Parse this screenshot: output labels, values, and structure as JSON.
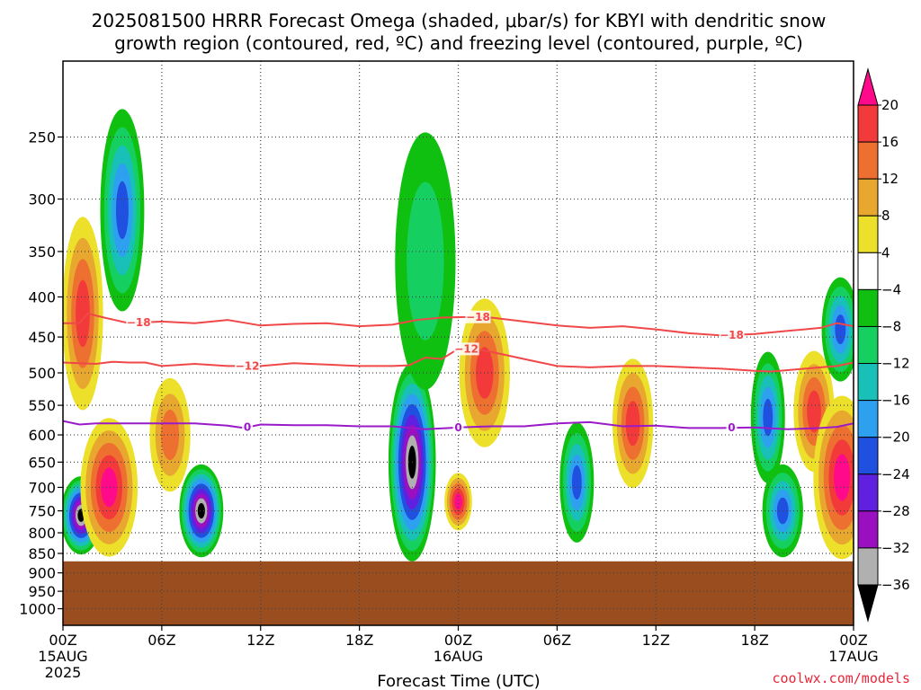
{
  "title": {
    "line1": "2025081500 HRRR Forecast Omega (shaded, μbar/s) for KBYI with dendritic snow",
    "line2": "growth region (contoured, red, ºC) and freezing level (contoured, purple, ºC)"
  },
  "credit": "coolwx.com/models",
  "colors": {
    "ground": "#9a4e1f",
    "dgz_contour": "#f04848",
    "freezing_contour": "#9a1ac8",
    "grid": "#444444"
  },
  "chart_data": {
    "type": "heatmap",
    "xlabel": "Forecast Time (UTC)",
    "ylabel": "",
    "x_ticks": [
      {
        "h": 0,
        "label": "00Z",
        "sub": "15AUG",
        "sub2": "2025"
      },
      {
        "h": 6,
        "label": "06Z"
      },
      {
        "h": 12,
        "label": "12Z"
      },
      {
        "h": 18,
        "label": "18Z"
      },
      {
        "h": 24,
        "label": "00Z",
        "sub": "16AUG"
      },
      {
        "h": 30,
        "label": "06Z"
      },
      {
        "h": 36,
        "label": "12Z"
      },
      {
        "h": 42,
        "label": "18Z"
      },
      {
        "h": 48,
        "label": "00Z",
        "sub": "17AUG"
      }
    ],
    "xlim": [
      0,
      48
    ],
    "y_axis": "pressure (hPa), log scale, reversed",
    "ylim": [
      1050,
      200
    ],
    "y_ticks": [
      250,
      300,
      350,
      400,
      450,
      500,
      550,
      600,
      650,
      700,
      750,
      800,
      850,
      900,
      950,
      1000
    ],
    "colorbar": {
      "units": "μbar/s",
      "levels": [
        20,
        16,
        12,
        8,
        4,
        -4,
        -8,
        -12,
        -16,
        -20,
        -24,
        -28,
        -32,
        -36
      ],
      "tick_labels": [
        "20",
        "16",
        "12",
        "8",
        "4",
        "−4",
        "−8",
        "−12",
        "−16",
        "−20",
        "−24",
        "−28",
        "−32",
        "−36"
      ],
      "colors": [
        "#ff0a8a",
        "#f23a3a",
        "#ee7030",
        "#e8a830",
        "#ece02a",
        "#ffffff",
        "#10c010",
        "#15d060",
        "#18c0b8",
        "#2ea0f0",
        "#2050e0",
        "#6020e0",
        "#9a10c0",
        "#b0b0b0",
        "#000000"
      ]
    },
    "ground_top_hpa": 870,
    "contours": [
      {
        "name": "-18",
        "color": "#f04848",
        "x": [
          0,
          1,
          1.5,
          2.5,
          4,
          6,
          8,
          10,
          12,
          14,
          16,
          18,
          20,
          21.5,
          23,
          25,
          26,
          28,
          30,
          32,
          34,
          36,
          38,
          40,
          42,
          44,
          46,
          47,
          48
        ],
        "y": [
          432,
          432,
          420,
          425,
          432,
          430,
          432,
          428,
          435,
          433,
          432,
          436,
          434,
          428,
          425,
          424,
          425,
          430,
          435,
          438,
          436,
          440,
          445,
          448,
          446,
          442,
          438,
          432,
          436
        ],
        "labels": [
          {
            "x": 4.6,
            "text": "−18"
          },
          {
            "x": 25.2,
            "text": "−18"
          },
          {
            "x": 40.6,
            "text": "−18"
          }
        ]
      },
      {
        "name": "-12",
        "color": "#f04848",
        "x": [
          0,
          1,
          2,
          3,
          4,
          5,
          6,
          8,
          10,
          12,
          14,
          16,
          18,
          20,
          21,
          22,
          23,
          24,
          25,
          26,
          28,
          30,
          32,
          34,
          36,
          38,
          40,
          42,
          43,
          44,
          46,
          47,
          48
        ],
        "y": [
          485,
          486,
          487,
          484,
          485,
          485,
          490,
          487,
          490,
          490,
          486,
          488,
          490,
          490,
          489,
          478,
          480,
          466,
          466,
          470,
          480,
          490,
          492,
          490,
          490,
          492,
          494,
          497,
          498,
          496,
          492,
          490,
          485
        ],
        "labels": [
          {
            "x": 11.2,
            "text": "−12"
          },
          {
            "x": 24.5,
            "text": "−12"
          }
        ]
      },
      {
        "name": "0",
        "color": "#9a1ac8",
        "x": [
          0,
          1,
          2,
          4,
          6,
          8,
          10,
          11,
          12,
          14,
          16,
          18,
          20,
          22,
          24,
          26,
          28,
          30,
          32,
          34,
          36,
          38,
          40,
          42,
          44,
          46,
          47,
          48
        ],
        "y": [
          576,
          582,
          580,
          580,
          580,
          580,
          584,
          588,
          582,
          583,
          583,
          585,
          585,
          590,
          587,
          585,
          585,
          580,
          578,
          585,
          584,
          588,
          588,
          587,
          590,
          588,
          586,
          580
        ],
        "labels": [
          {
            "x": 11.2,
            "text": "0"
          },
          {
            "x": 24.0,
            "text": "0"
          },
          {
            "x": 40.6,
            "text": "0"
          }
        ]
      }
    ],
    "omega_features": [
      {
        "h": 1.1,
        "p": 760,
        "dh": 0.8,
        "dp": 150,
        "value": -36
      },
      {
        "h": 2.8,
        "p": 700,
        "dh": 1.3,
        "dp": 260,
        "value": 20
      },
      {
        "h": 3.6,
        "p": 310,
        "dh": 0.9,
        "dp": 170,
        "value": -22
      },
      {
        "h": 1.2,
        "p": 420,
        "dh": 0.8,
        "dp": 220,
        "value": 16
      },
      {
        "h": 8.4,
        "p": 750,
        "dh": 0.9,
        "dp": 180,
        "value": -36
      },
      {
        "h": 6.5,
        "p": 600,
        "dh": 0.8,
        "dp": 180,
        "value": 12
      },
      {
        "h": 21.2,
        "p": 650,
        "dh": 1.0,
        "dp": 350,
        "value": -36
      },
      {
        "h": 22.0,
        "p": 360,
        "dh": 1.4,
        "dp": 250,
        "value": -8
      },
      {
        "h": 25.6,
        "p": 500,
        "dh": 1.1,
        "dp": 200,
        "value": 16
      },
      {
        "h": 24.0,
        "p": 730,
        "dh": 0.4,
        "dp": 100,
        "value": 20
      },
      {
        "h": 31.2,
        "p": 690,
        "dh": 0.6,
        "dp": 220,
        "value": -20
      },
      {
        "h": 34.6,
        "p": 580,
        "dh": 0.8,
        "dp": 200,
        "value": 16
      },
      {
        "h": 42.8,
        "p": 570,
        "dh": 0.6,
        "dp": 200,
        "value": -22
      },
      {
        "h": 45.6,
        "p": 560,
        "dh": 0.8,
        "dp": 180,
        "value": 16
      },
      {
        "h": 43.7,
        "p": 750,
        "dh": 0.8,
        "dp": 180,
        "value": -22
      },
      {
        "h": 47.3,
        "p": 680,
        "dh": 1.3,
        "dp": 300,
        "value": 20
      },
      {
        "h": 47.2,
        "p": 440,
        "dh": 0.7,
        "dp": 120,
        "value": -22
      }
    ]
  }
}
